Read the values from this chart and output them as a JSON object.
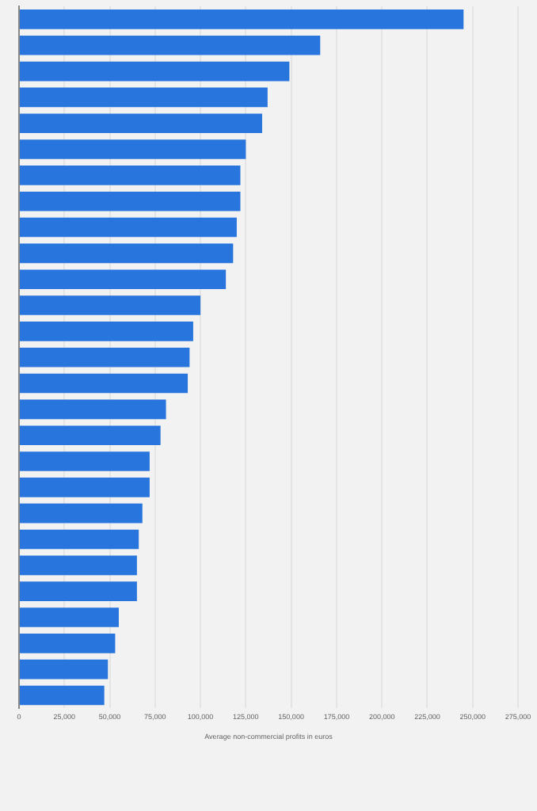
{
  "chart_data": {
    "type": "bar",
    "orientation": "horizontal",
    "xlabel": "Average non-commercial profits in euros",
    "categories": [
      null,
      null,
      null,
      null,
      null,
      null,
      null,
      null,
      null,
      null,
      null,
      null,
      null,
      null,
      null,
      null,
      null,
      null,
      null,
      null,
      null,
      null,
      null,
      null,
      null,
      null,
      null
    ],
    "values": [
      245000,
      166000,
      149000,
      137000,
      134000,
      125000,
      122000,
      122000,
      120000,
      118000,
      114000,
      100000,
      96000,
      94000,
      93000,
      81000,
      78000,
      72000,
      72000,
      68000,
      66000,
      65000,
      65000,
      55000,
      53000,
      49000,
      47000
    ],
    "color": "#2876dd",
    "xlim": [
      0,
      275000
    ],
    "xticks": [
      0,
      {
        "value": 25000,
        "label": "25,000"
      },
      {
        "value": 50000,
        "label": "50,000"
      },
      {
        "value": 75000,
        "label": "75,000"
      },
      {
        "value": 100000,
        "label": "100,000"
      },
      {
        "value": 125000,
        "label": "125,000"
      },
      {
        "value": 150000,
        "label": "150,000"
      },
      {
        "value": 175000,
        "label": "175,000"
      },
      {
        "value": 200000,
        "label": "200,000"
      },
      {
        "value": 225000,
        "label": "225,000"
      },
      {
        "value": 250000,
        "label": "250,000"
      },
      {
        "value": 275000,
        "label": "275,000"
      }
    ],
    "grid": "x",
    "tick_labels": "x",
    "legend": false
  }
}
